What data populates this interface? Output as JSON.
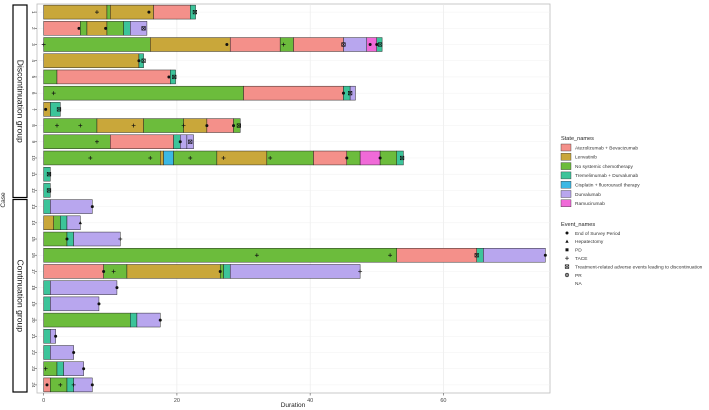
{
  "chart_data": {
    "type": "bar",
    "orientation": "horizontal",
    "xlabel": "Duration",
    "ylabel": "Case",
    "xlim": [
      -1,
      76
    ],
    "x_ticks": [
      0,
      20,
      40,
      60
    ],
    "grid": true,
    "legend_placement": "right",
    "groups": [
      {
        "label": "Discontinuation group",
        "cases": [
          "1",
          "2",
          "3",
          "4",
          "5",
          "6",
          "7",
          "8",
          "9",
          "10",
          "11",
          "12"
        ]
      },
      {
        "label": "Continuation group",
        "cases": [
          "13",
          "14",
          "15",
          "16",
          "17",
          "18",
          "19",
          "20",
          "21",
          "22",
          "23",
          "24"
        ]
      }
    ],
    "state_legend_title": "State_names",
    "states": [
      {
        "name": "Atezolizumab + Bevacizumab",
        "color": "#f4908a"
      },
      {
        "name": "Lenvatinib",
        "color": "#c9a73a"
      },
      {
        "name": "No systemic chemotherapy",
        "color": "#6cbc3c"
      },
      {
        "name": "Tremelimumab + Durvalumab",
        "color": "#3cc49a"
      },
      {
        "name": "Cisplatin + fluorouracil therapy",
        "color": "#3cb8e4"
      },
      {
        "name": "Durvalumab",
        "color": "#b8a6ee"
      },
      {
        "name": "Ramucirumab",
        "color": "#f06ad8"
      }
    ],
    "event_legend_title": "Event_names",
    "events": [
      {
        "name": "End of Survey Period",
        "symbol": "circle"
      },
      {
        "name": "Hepatectomy",
        "symbol": "triangle"
      },
      {
        "name": "PD",
        "symbol": "square"
      },
      {
        "name": "TACE",
        "symbol": "plus"
      },
      {
        "name": "Treatment-related adverse events leading to discontinuation",
        "symbol": "boxed-x"
      },
      {
        "name": "PR",
        "symbol": "circle-plus"
      },
      {
        "name": "NA",
        "symbol": "none"
      }
    ],
    "case_segments": [
      {
        "case": "1",
        "segments": [
          [
            0,
            9.5,
            "Lenvatinib"
          ],
          [
            9.5,
            10,
            "No systemic chemotherapy"
          ],
          [
            10,
            16.5,
            "Lenvatinib"
          ],
          [
            16.5,
            22,
            "Atezolizumab + Bevacizumab"
          ],
          [
            22,
            22.8,
            "Tremelimumab + Durvalumab"
          ]
        ]
      },
      {
        "case": "2",
        "segments": [
          [
            0,
            5.5,
            "Atezolizumab + Bevacizumab"
          ],
          [
            5.5,
            6.5,
            "No systemic chemotherapy"
          ],
          [
            6.5,
            9.5,
            "Lenvatinib"
          ],
          [
            9.5,
            12,
            "No systemic chemotherapy"
          ],
          [
            12,
            13,
            "Tremelimumab + Durvalumab"
          ],
          [
            13,
            15.5,
            "Durvalumab"
          ]
        ]
      },
      {
        "case": "3",
        "segments": [
          [
            0,
            16,
            "No systemic chemotherapy"
          ],
          [
            16,
            28,
            "Lenvatinib"
          ],
          [
            28,
            35.5,
            "Atezolizumab + Bevacizumab"
          ],
          [
            35.5,
            37.5,
            "No systemic chemotherapy"
          ],
          [
            37.5,
            45,
            "Atezolizumab + Bevacizumab"
          ],
          [
            45,
            48.5,
            "Durvalumab"
          ],
          [
            48.5,
            50,
            "Ramucirumab"
          ],
          [
            50,
            50.8,
            "Tremelimumab + Durvalumab"
          ]
        ]
      },
      {
        "case": "4",
        "segments": [
          [
            0,
            14.3,
            "Lenvatinib"
          ],
          [
            14.3,
            15,
            "Tremelimumab + Durvalumab"
          ]
        ]
      },
      {
        "case": "5",
        "segments": [
          [
            0,
            2,
            "No systemic chemotherapy"
          ],
          [
            2,
            19,
            "Atezolizumab + Bevacizumab"
          ],
          [
            19,
            19.8,
            "Tremelimumab + Durvalumab"
          ]
        ]
      },
      {
        "case": "6",
        "segments": [
          [
            0,
            30,
            "No systemic chemotherapy"
          ],
          [
            30,
            45,
            "Atezolizumab + Bevacizumab"
          ],
          [
            45,
            46,
            "Tremelimumab + Durvalumab"
          ],
          [
            46,
            46.8,
            "Durvalumab"
          ]
        ]
      },
      {
        "case": "7",
        "segments": [
          [
            0,
            1,
            "Lenvatinib"
          ],
          [
            1,
            2.5,
            "Tremelimumab + Durvalumab"
          ]
        ]
      },
      {
        "case": "8",
        "segments": [
          [
            0,
            8,
            "No systemic chemotherapy"
          ],
          [
            8,
            15,
            "Lenvatinib"
          ],
          [
            15,
            21,
            "No systemic chemotherapy"
          ],
          [
            21,
            24.5,
            "Lenvatinib"
          ],
          [
            24.5,
            28.5,
            "Atezolizumab + Bevacizumab"
          ],
          [
            28.5,
            29.5,
            "No systemic chemotherapy"
          ]
        ]
      },
      {
        "case": "9",
        "segments": [
          [
            0,
            10,
            "No systemic chemotherapy"
          ],
          [
            10,
            19.5,
            "Atezolizumab + Bevacizumab"
          ],
          [
            19.5,
            20.5,
            "Tremelimumab + Durvalumab"
          ],
          [
            20.5,
            21.5,
            "Durvalumab"
          ],
          [
            21.5,
            22.5,
            "Durvalumab"
          ]
        ]
      },
      {
        "case": "10",
        "segments": [
          [
            0,
            17.5,
            "No systemic chemotherapy"
          ],
          [
            17.5,
            18,
            "Lenvatinib"
          ],
          [
            18,
            19.5,
            "Cisplatin + fluorouracil therapy"
          ],
          [
            19.5,
            26,
            "No systemic chemotherapy"
          ],
          [
            26,
            33.5,
            "Lenvatinib"
          ],
          [
            33.5,
            40.5,
            "No systemic chemotherapy"
          ],
          [
            40.5,
            45.5,
            "Atezolizumab + Bevacizumab"
          ],
          [
            45.5,
            47.5,
            "No systemic chemotherapy"
          ],
          [
            47.5,
            50.5,
            "Ramucirumab"
          ],
          [
            50.5,
            53,
            "No systemic chemotherapy"
          ],
          [
            53,
            54,
            "Tremelimumab + Durvalumab"
          ]
        ]
      },
      {
        "case": "11",
        "segments": [
          [
            0,
            1,
            "Tremelimumab + Durvalumab"
          ]
        ]
      },
      {
        "case": "12",
        "segments": [
          [
            0,
            1,
            "Tremelimumab + Durvalumab"
          ]
        ]
      },
      {
        "case": "13",
        "segments": [
          [
            0,
            1,
            "Tremelimumab + Durvalumab"
          ],
          [
            1,
            7.3,
            "Durvalumab"
          ]
        ]
      },
      {
        "case": "14",
        "segments": [
          [
            0,
            1.5,
            "Lenvatinib"
          ],
          [
            1.5,
            2.5,
            "No systemic chemotherapy"
          ],
          [
            2.5,
            3.5,
            "Tremelimumab + Durvalumab"
          ],
          [
            3.5,
            5.5,
            "Durvalumab"
          ]
        ]
      },
      {
        "case": "15",
        "segments": [
          [
            0,
            3.5,
            "No systemic chemotherapy"
          ],
          [
            3.5,
            4.5,
            "Tremelimumab + Durvalumab"
          ],
          [
            4.5,
            11.5,
            "Durvalumab"
          ]
        ]
      },
      {
        "case": "16",
        "segments": [
          [
            0,
            53,
            "No systemic chemotherapy"
          ],
          [
            53,
            65,
            "Atezolizumab + Bevacizumab"
          ],
          [
            65,
            66,
            "Tremelimumab + Durvalumab"
          ],
          [
            66,
            75.3,
            "Durvalumab"
          ]
        ]
      },
      {
        "case": "17",
        "segments": [
          [
            0,
            9,
            "Atezolizumab + Bevacizumab"
          ],
          [
            9,
            12.5,
            "No systemic chemotherapy"
          ],
          [
            12.5,
            26.5,
            "Lenvatinib"
          ],
          [
            26.5,
            27,
            "No systemic chemotherapy"
          ],
          [
            27,
            28,
            "Tremelimumab + Durvalumab"
          ],
          [
            28,
            47.5,
            "Durvalumab"
          ]
        ]
      },
      {
        "case": "18",
        "segments": [
          [
            0,
            1,
            "Tremelimumab + Durvalumab"
          ],
          [
            1,
            11,
            "Durvalumab"
          ]
        ]
      },
      {
        "case": "19",
        "segments": [
          [
            0,
            1,
            "Tremelimumab + Durvalumab"
          ],
          [
            1,
            8.3,
            "Durvalumab"
          ]
        ]
      },
      {
        "case": "20",
        "segments": [
          [
            0,
            13,
            "No systemic chemotherapy"
          ],
          [
            13,
            14,
            "Tremelimumab + Durvalumab"
          ],
          [
            14,
            17.5,
            "Durvalumab"
          ]
        ]
      },
      {
        "case": "21",
        "segments": [
          [
            0,
            1,
            "Tremelimumab + Durvalumab"
          ],
          [
            1,
            1.8,
            "Durvalumab"
          ]
        ]
      },
      {
        "case": "22",
        "segments": [
          [
            0,
            1,
            "Tremelimumab + Durvalumab"
          ],
          [
            1,
            4.5,
            "Durvalumab"
          ]
        ]
      },
      {
        "case": "23",
        "segments": [
          [
            0,
            2,
            "No systemic chemotherapy"
          ],
          [
            2,
            3,
            "Tremelimumab + Durvalumab"
          ],
          [
            3,
            6,
            "Durvalumab"
          ]
        ]
      },
      {
        "case": "24",
        "segments": [
          [
            0,
            1,
            "Atezolizumab + Bevacizumab"
          ],
          [
            1,
            3.5,
            "No systemic chemotherapy"
          ],
          [
            3.5,
            4.5,
            "Tremelimumab + Durvalumab"
          ],
          [
            4.5,
            7.3,
            "Durvalumab"
          ]
        ]
      }
    ],
    "case_events": [
      {
        "case": "1",
        "events": [
          [
            8,
            "TACE"
          ],
          [
            15.8,
            "End of Survey Period"
          ],
          [
            22.7,
            "Treatment-related adverse events leading to discontinuation"
          ]
        ]
      },
      {
        "case": "2",
        "events": [
          [
            5.3,
            "End of Survey Period"
          ],
          [
            9.3,
            "End of Survey Period"
          ],
          [
            15,
            "Treatment-related adverse events leading to discontinuation"
          ]
        ]
      },
      {
        "case": "3",
        "events": [
          [
            0,
            "TACE"
          ],
          [
            27.5,
            "End of Survey Period"
          ],
          [
            36,
            "TACE"
          ],
          [
            45,
            "Treatment-related adverse events leading to discontinuation"
          ],
          [
            49,
            "End of Survey Period"
          ],
          [
            50,
            "End of Survey Period"
          ],
          [
            50.5,
            "Treatment-related adverse events leading to discontinuation"
          ]
        ]
      },
      {
        "case": "4",
        "events": [
          [
            14.3,
            "End of Survey Period"
          ],
          [
            15,
            "Treatment-related adverse events leading to discontinuation"
          ]
        ]
      },
      {
        "case": "5",
        "events": [
          [
            18.8,
            "End of Survey Period"
          ],
          [
            19.6,
            "Treatment-related adverse events leading to discontinuation"
          ]
        ]
      },
      {
        "case": "6",
        "events": [
          [
            1.5,
            "TACE"
          ],
          [
            45,
            "End of Survey Period"
          ],
          [
            46,
            "Treatment-related adverse events leading to discontinuation"
          ]
        ]
      },
      {
        "case": "7",
        "events": [
          [
            0.3,
            "End of Survey Period"
          ],
          [
            2.3,
            "Treatment-related adverse events leading to discontinuation"
          ]
        ]
      },
      {
        "case": "8",
        "events": [
          [
            2,
            "TACE"
          ],
          [
            5.5,
            "TACE"
          ],
          [
            13.5,
            "TACE"
          ],
          [
            21,
            "TACE"
          ],
          [
            24.5,
            "End of Survey Period"
          ],
          [
            28.5,
            "End of Survey Period"
          ],
          [
            29.3,
            "Treatment-related adverse events leading to discontinuation"
          ]
        ]
      },
      {
        "case": "9",
        "events": [
          [
            8,
            "TACE"
          ],
          [
            20.5,
            "End of Survey Period"
          ],
          [
            22,
            "Treatment-related adverse events leading to discontinuation"
          ]
        ]
      },
      {
        "case": "10",
        "events": [
          [
            7,
            "TACE"
          ],
          [
            16,
            "TACE"
          ],
          [
            22,
            "TACE"
          ],
          [
            27,
            "TACE"
          ],
          [
            34,
            "TACE"
          ],
          [
            45.5,
            "End of Survey Period"
          ],
          [
            50.5,
            "End of Survey Period"
          ],
          [
            53.8,
            "Treatment-related adverse events leading to discontinuation"
          ]
        ]
      },
      {
        "case": "11",
        "events": [
          [
            0.8,
            "Treatment-related adverse events leading to discontinuation"
          ]
        ]
      },
      {
        "case": "12",
        "events": [
          [
            0.8,
            "Treatment-related adverse events leading to discontinuation"
          ]
        ]
      },
      {
        "case": "13",
        "events": [
          [
            7.3,
            "End of Survey Period"
          ]
        ]
      },
      {
        "case": "14",
        "events": [
          [
            5.5,
            "Hepatectomy"
          ]
        ]
      },
      {
        "case": "15",
        "events": [
          [
            3.5,
            "End of Survey Period"
          ],
          [
            11.5,
            "TACE"
          ]
        ]
      },
      {
        "case": "16",
        "events": [
          [
            32,
            "TACE"
          ],
          [
            52,
            "TACE"
          ],
          [
            65,
            "Treatment-related adverse events leading to discontinuation"
          ],
          [
            75.3,
            "End of Survey Period"
          ]
        ]
      },
      {
        "case": "17",
        "events": [
          [
            9,
            "End of Survey Period"
          ],
          [
            10.5,
            "TACE"
          ],
          [
            26.5,
            "End of Survey Period"
          ],
          [
            47.5,
            "TACE"
          ]
        ]
      },
      {
        "case": "18",
        "events": [
          [
            11,
            "End of Survey Period"
          ]
        ]
      },
      {
        "case": "19",
        "events": [
          [
            8.3,
            "End of Survey Period"
          ]
        ]
      },
      {
        "case": "20",
        "events": [
          [
            17.5,
            "End of Survey Period"
          ]
        ]
      },
      {
        "case": "21",
        "events": [
          [
            1.8,
            "End of Survey Period"
          ]
        ]
      },
      {
        "case": "22",
        "events": [
          [
            4.5,
            "End of Survey Period"
          ]
        ]
      },
      {
        "case": "23",
        "events": [
          [
            0.3,
            "TACE"
          ],
          [
            6,
            "End of Survey Period"
          ]
        ]
      },
      {
        "case": "24",
        "events": [
          [
            0.5,
            "End of Survey Period"
          ],
          [
            2.5,
            "TACE"
          ],
          [
            4.5,
            "TACE"
          ],
          [
            7.3,
            "End of Survey Period"
          ]
        ]
      }
    ]
  }
}
